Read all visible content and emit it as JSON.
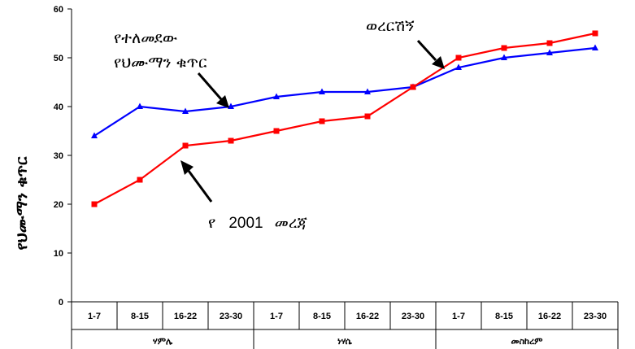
{
  "chart_data": {
    "type": "line",
    "categories": [
      "1-7",
      "8-15",
      "16-22",
      "23-30",
      "1-7",
      "8-15",
      "16-22",
      "23-30",
      "1-7",
      "8-15",
      "16-22",
      "23-30"
    ],
    "groups": [
      {
        "label": "ሃምሌ",
        "span": 4
      },
      {
        "label": "ነሃሴ",
        "span": 4
      },
      {
        "label": "መስከረም",
        "span": 4
      }
    ],
    "series": [
      {
        "color": "#0000ff",
        "marker": "triangle",
        "values": [
          34,
          40,
          39,
          40,
          42,
          43,
          43,
          44,
          48,
          50,
          51,
          52
        ]
      },
      {
        "color": "#ff0000",
        "marker": "square",
        "values": [
          20,
          25,
          32,
          33,
          35,
          37,
          38,
          44,
          50,
          52,
          53,
          55
        ]
      }
    ],
    "ylim": [
      0,
      60
    ],
    "yticks": [
      "0",
      "10",
      "20",
      "30",
      "40",
      "50",
      "60"
    ],
    "ylabel": "የህሙማን ቁጥር",
    "xlabel": "",
    "grid": false,
    "annotations": {
      "blue_line_1": "የተለመደው",
      "blue_line_2": "የህሙማን ቁጥር",
      "red_prefix": "የ",
      "red_year": "2001",
      "red_suffix": "መረጃ",
      "crossover": "ወረርሽኝ"
    }
  }
}
